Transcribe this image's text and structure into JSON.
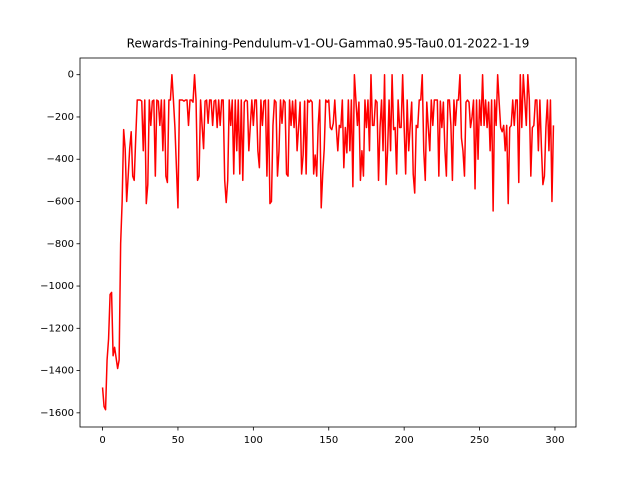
{
  "chart_data": {
    "type": "line",
    "title": "Rewards-Training-Pendulum-v1-OU-Gamma0.95-Tau0.01-2022-1-19",
    "x": [
      0,
      1,
      2,
      3,
      4,
      5,
      6,
      7,
      8,
      9,
      10,
      11,
      12,
      13,
      14,
      15,
      16,
      17,
      18,
      19,
      20,
      21,
      22,
      23,
      24,
      25,
      26,
      27,
      28,
      29,
      30,
      31,
      32,
      33,
      34,
      35,
      36,
      37,
      38,
      39,
      40,
      41,
      42,
      43,
      44,
      45,
      46,
      47,
      48,
      49,
      50,
      51,
      52,
      53,
      54,
      55,
      56,
      57,
      58,
      59,
      60,
      61,
      62,
      63,
      64,
      65,
      66,
      67,
      68,
      69,
      70,
      71,
      72,
      73,
      74,
      75,
      76,
      77,
      78,
      79,
      80,
      81,
      82,
      83,
      84,
      85,
      86,
      87,
      88,
      89,
      90,
      91,
      92,
      93,
      94,
      95,
      96,
      97,
      98,
      99,
      100,
      101,
      102,
      103,
      104,
      105,
      106,
      107,
      108,
      109,
      110,
      111,
      112,
      113,
      114,
      115,
      116,
      117,
      118,
      119,
      120,
      121,
      122,
      123,
      124,
      125,
      126,
      127,
      128,
      129,
      130,
      131,
      132,
      133,
      134,
      135,
      136,
      137,
      138,
      139,
      140,
      141,
      142,
      143,
      144,
      145,
      146,
      147,
      148,
      149,
      150,
      151,
      152,
      153,
      154,
      155,
      156,
      157,
      158,
      159,
      160,
      161,
      162,
      163,
      164,
      165,
      166,
      167,
      168,
      169,
      170,
      171,
      172,
      173,
      174,
      175,
      176,
      177,
      178,
      179,
      180,
      181,
      182,
      183,
      184,
      185,
      186,
      187,
      188,
      189,
      190,
      191,
      192,
      193,
      194,
      195,
      196,
      197,
      198,
      199,
      200,
      201,
      202,
      203,
      204,
      205,
      206,
      207,
      208,
      209,
      210,
      211,
      212,
      213,
      214,
      215,
      216,
      217,
      218,
      219,
      220,
      221,
      222,
      223,
      224,
      225,
      226,
      227,
      228,
      229,
      230,
      231,
      232,
      233,
      234,
      235,
      236,
      237,
      238,
      239,
      240,
      241,
      242,
      243,
      244,
      245,
      246,
      247,
      248,
      249,
      250,
      251,
      252,
      253,
      254,
      255,
      256,
      257,
      258,
      259,
      260,
      261,
      262,
      263,
      264,
      265,
      266,
      267,
      268,
      269,
      270,
      271,
      272,
      273,
      274,
      275,
      276,
      277,
      278,
      279,
      280,
      281,
      282,
      283,
      284,
      285,
      286,
      287,
      288,
      289,
      290,
      291,
      292,
      293,
      294,
      295,
      296,
      297,
      298,
      299
    ],
    "values": [
      -1480,
      -1570,
      -1585,
      -1350,
      -1250,
      -1040,
      -1030,
      -1330,
      -1290,
      -1340,
      -1390,
      -1350,
      -800,
      -600,
      -260,
      -350,
      -600,
      -480,
      -350,
      -270,
      -480,
      -500,
      -300,
      -120,
      -120,
      -120,
      -125,
      -360,
      -120,
      -610,
      -520,
      -120,
      -240,
      -125,
      -120,
      -480,
      -120,
      -125,
      -240,
      -120,
      -360,
      -120,
      -480,
      -510,
      -120,
      -120,
      0,
      -120,
      -250,
      -440,
      -630,
      -120,
      -120,
      -120,
      -125,
      -120,
      -120,
      -240,
      -120,
      -120,
      -130,
      0,
      -120,
      -500,
      -480,
      -120,
      -240,
      -350,
      -125,
      -120,
      -230,
      -120,
      -120,
      -240,
      -125,
      -120,
      -250,
      -120,
      -240,
      -120,
      -120,
      -500,
      -605,
      -500,
      -120,
      -240,
      -120,
      -470,
      -120,
      -360,
      -120,
      -470,
      -120,
      -500,
      -130,
      -120,
      -125,
      -360,
      -240,
      -120,
      -240,
      -120,
      -120,
      -360,
      -440,
      -120,
      -240,
      -125,
      -120,
      -480,
      -120,
      -610,
      -600,
      -240,
      -120,
      -130,
      -480,
      -360,
      -120,
      -230,
      -120,
      -130,
      -470,
      -480,
      -120,
      -240,
      -125,
      -250,
      -120,
      -360,
      -250,
      -130,
      -470,
      -380,
      -125,
      -470,
      -120,
      -130,
      -120,
      -130,
      -470,
      -380,
      -480,
      -240,
      -120,
      -630,
      -470,
      -350,
      -120,
      -130,
      -120,
      -250,
      -260,
      -230,
      -120,
      -250,
      -360,
      -240,
      -250,
      -120,
      -440,
      -250,
      -370,
      -120,
      -360,
      -120,
      -530,
      0,
      -120,
      -240,
      -130,
      -500,
      -360,
      -480,
      -120,
      -250,
      -120,
      -360,
      0,
      -240,
      -240,
      -120,
      -130,
      -500,
      -250,
      -120,
      -360,
      0,
      -520,
      -360,
      -120,
      -360,
      0,
      -260,
      -250,
      -470,
      -120,
      -250,
      -250,
      0,
      -250,
      -470,
      -120,
      -360,
      -240,
      -130,
      -470,
      -560,
      -240,
      -250,
      -120,
      -120,
      0,
      -360,
      -500,
      -130,
      -250,
      -360,
      -120,
      -240,
      -120,
      -120,
      -120,
      -480,
      -125,
      -250,
      -130,
      -350,
      -480,
      -120,
      -120,
      -240,
      -500,
      -120,
      -240,
      -120,
      -120,
      0,
      -300,
      -360,
      -480,
      -130,
      -120,
      -130,
      -250,
      -200,
      -120,
      -540,
      -120,
      -400,
      -120,
      -240,
      0,
      -240,
      -120,
      -250,
      -130,
      -360,
      -120,
      -645,
      -120,
      -240,
      0,
      -130,
      -250,
      -270,
      -240,
      -360,
      -240,
      -610,
      -250,
      -240,
      -120,
      -240,
      -120,
      -120,
      -510,
      0,
      -250,
      0,
      -120,
      -240,
      0,
      -120,
      -480,
      -250,
      -240,
      -120,
      -120,
      -360,
      -120,
      -340,
      -520,
      -480,
      -250,
      -120,
      -360,
      -120,
      -600,
      -240
    ],
    "color": "#ff0000",
    "xlim": [
      -14.95,
      313.95
    ],
    "xticks": [
      0,
      50,
      100,
      150,
      200,
      250,
      300
    ],
    "ylim": [
      -1667,
      79
    ],
    "yticks": [
      {
        "value": -1600,
        "label": "−1600"
      },
      {
        "value": -1400,
        "label": "−1400"
      },
      {
        "value": -1200,
        "label": "−1200"
      },
      {
        "value": -1000,
        "label": "−1000"
      },
      {
        "value": -800,
        "label": "−800"
      },
      {
        "value": -600,
        "label": "−600"
      },
      {
        "value": -400,
        "label": "−400"
      },
      {
        "value": -200,
        "label": "−200"
      },
      0
    ],
    "grid": false
  }
}
